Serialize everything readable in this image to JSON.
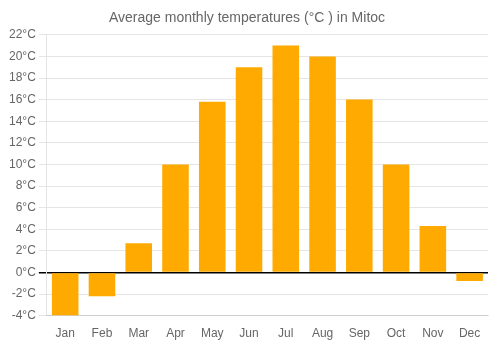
{
  "chart_data": {
    "type": "bar",
    "title": "Average monthly temperatures (°C ) in Mitoc",
    "categories": [
      "Jan",
      "Feb",
      "Mar",
      "Apr",
      "May",
      "Jun",
      "Jul",
      "Aug",
      "Sep",
      "Oct",
      "Nov",
      "Dec"
    ],
    "values": [
      -4,
      -2.2,
      2.7,
      10,
      15.8,
      19,
      21,
      20,
      16,
      10,
      4.3,
      -0.8
    ],
    "color": "#FFAA00",
    "ylim": [
      -4,
      22
    ],
    "yticks": [
      {
        "value": -4,
        "label": "-4°C"
      },
      {
        "value": -2,
        "label": "-2°C"
      },
      {
        "value": 0,
        "label": "0°C"
      },
      {
        "value": 2,
        "label": "2°C"
      },
      {
        "value": 4,
        "label": "4°C"
      },
      {
        "value": 6,
        "label": "6°C"
      },
      {
        "value": 8,
        "label": "8°C"
      },
      {
        "value": 10,
        "label": "10°C"
      },
      {
        "value": 12,
        "label": "12°C"
      },
      {
        "value": 14,
        "label": "14°C"
      },
      {
        "value": 16,
        "label": "16°C"
      },
      {
        "value": 18,
        "label": "18°C"
      },
      {
        "value": 20,
        "label": "20°C"
      },
      {
        "value": 22,
        "label": "22°C"
      }
    ],
    "grid": true
  }
}
